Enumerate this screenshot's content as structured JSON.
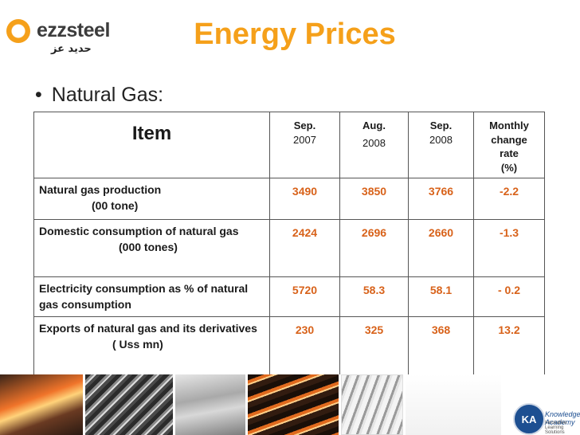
{
  "logo": {
    "word": "ezzsteel",
    "arabic": "حديد عز"
  },
  "title": "Energy Prices",
  "bullet": "Natural Gas:",
  "table": {
    "header": {
      "item": "Item",
      "sep2007": {
        "l1": "Sep.",
        "l2": "2007"
      },
      "aug2008": {
        "l1": "Aug.",
        "l2": "2008"
      },
      "sep2008": {
        "l1": "Sep.",
        "l2": "2008"
      },
      "change": {
        "l1": "Monthly",
        "l2": "change",
        "l3": "rate",
        "l4": "(%)"
      }
    },
    "rows": [
      {
        "item": "Natural gas production",
        "unit": "(00 tone)",
        "sep2007": "3490",
        "aug2008": "3850",
        "sep2008": "3766",
        "change": "-2.2"
      },
      {
        "item": "Domestic consumption of natural gas",
        "unit": "(000 tones)",
        "sep2007": "2424",
        "aug2008": "2696",
        "sep2008": "2660",
        "change": "-1.3"
      },
      {
        "item": "Electricity consumption as % of natural gas consumption",
        "unit": "",
        "sep2007": "5720",
        "aug2008": "58.3",
        "sep2008": "58.1",
        "change": "- 0.2"
      },
      {
        "item": "Exports of natural gas and its derivatives",
        "unit": "( Uss mn)",
        "sep2007": "230",
        "aug2008": "325",
        "sep2008": "368",
        "change": "13.2"
      }
    ]
  },
  "footer": {
    "badge": "KA",
    "name": "Knowledge Academy",
    "sub": "Innovative Learning Solutions"
  },
  "colors": {
    "accent": "#f5a01a",
    "value": "#d8621a",
    "border": "#555555"
  }
}
